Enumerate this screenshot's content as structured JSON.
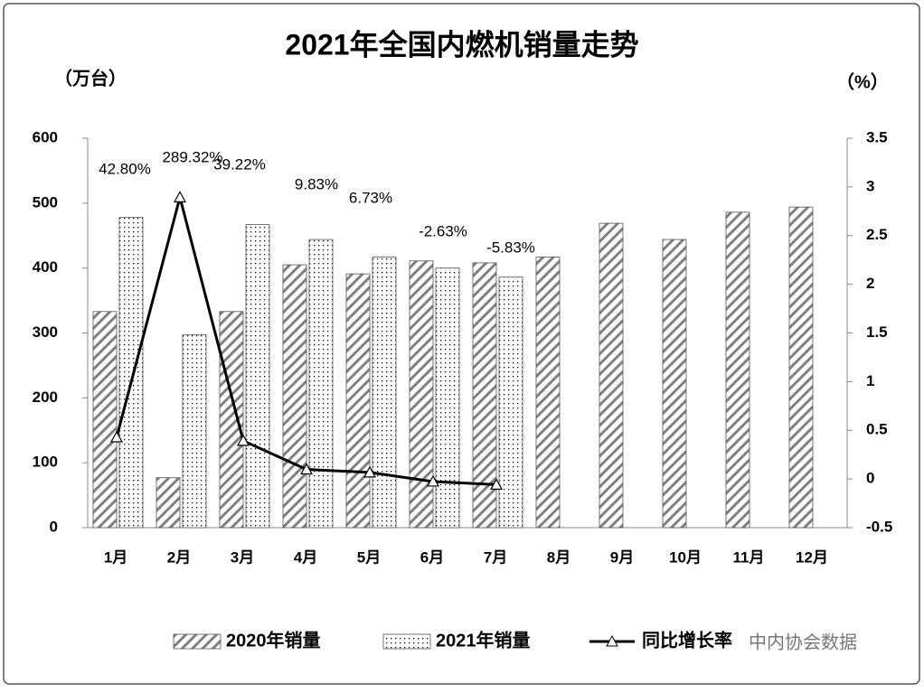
{
  "chart_data": {
    "type": "bar_line",
    "title": "2021年全国内燃机销量走势",
    "y_label": "（万台）",
    "y2_label": "（%）",
    "categories": [
      "1月",
      "2月",
      "3月",
      "4月",
      "5月",
      "6月",
      "7月",
      "8月",
      "9月",
      "10月",
      "11月",
      "12月"
    ],
    "series": [
      {
        "name": "2020年销量",
        "type": "bar",
        "pattern": "hatch",
        "color": "#808080",
        "values": [
          333,
          77,
          333,
          405,
          391,
          411,
          408,
          417,
          469,
          444,
          486,
          494
        ]
      },
      {
        "name": "2021年销量",
        "type": "bar",
        "pattern": "dots",
        "color": "#000000",
        "values": [
          478,
          297,
          467,
          444,
          417,
          400,
          386,
          null,
          null,
          null,
          null,
          null
        ]
      },
      {
        "name": "同比增长率",
        "type": "line",
        "axis": "y2",
        "color": "#000000",
        "values": [
          0.428,
          2.8932,
          0.3922,
          0.0983,
          0.0673,
          -0.0263,
          -0.0583,
          null,
          null,
          null,
          null,
          null
        ],
        "value_labels": [
          "42.80%",
          "289.32%",
          "39.22%",
          "9.83%",
          "6.73%",
          "-2.63%",
          "-5.83%",
          null,
          null,
          null,
          null,
          null
        ]
      }
    ],
    "ylim": [
      0,
      600
    ],
    "yticks": [
      0,
      100,
      200,
      300,
      400,
      500,
      600
    ],
    "y2lim": [
      -0.5,
      3.5
    ],
    "y2ticks": [
      -0.5,
      0,
      0.5,
      1,
      1.5,
      2,
      2.5,
      3,
      3.5
    ],
    "watermark": "中内协会数据"
  }
}
